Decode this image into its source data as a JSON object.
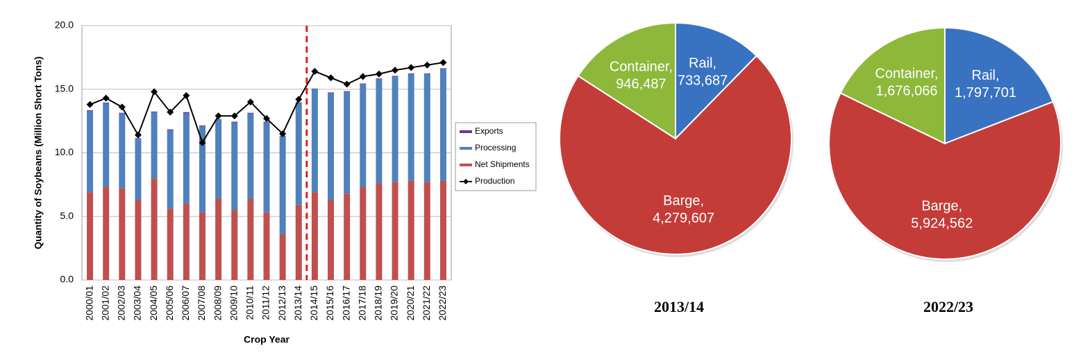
{
  "chart_data": [
    {
      "type": "bar",
      "x_label": "Crop Year",
      "y_label": "Quantity of  Soybeans  (Million Short Tons)",
      "categories": [
        "2000/01",
        "2001/02",
        "2002/03",
        "2003/04",
        "2004/05",
        "2005/06",
        "2006/07",
        "2007/08",
        "2008/09",
        "2009/10",
        "2010/11",
        "2011/12",
        "2012/13",
        "2013/14",
        "2014/15",
        "2015/16",
        "2016/17",
        "2017/18",
        "2018/19",
        "2019/20",
        "2020/21",
        "2021/22",
        "2022/23"
      ],
      "series": [
        {
          "name": "Exports",
          "color": "#7030a0",
          "values": [
            0.05,
            0.05,
            0.05,
            0.05,
            0.05,
            0.05,
            0.1,
            0.05,
            0.05,
            0.05,
            0.05,
            0.05,
            0.05,
            0.05,
            0.05,
            0.05,
            0.05,
            0.05,
            0.05,
            0.05,
            0.05,
            0.05,
            0.05
          ]
        },
        {
          "name": "Processing",
          "color": "#4f81bd",
          "values": [
            6.4,
            6.6,
            5.9,
            4.8,
            5.2,
            6.2,
            7.1,
            6.8,
            6.2,
            6.9,
            6.7,
            7.1,
            7.7,
            8.0,
            8.1,
            8.4,
            8.0,
            8.1,
            8.2,
            8.3,
            8.4,
            8.5,
            8.8
          ]
        },
        {
          "name": "Net Shipments",
          "color": "#c0504d",
          "values": [
            6.9,
            7.3,
            7.2,
            6.3,
            8.0,
            5.6,
            6.0,
            5.3,
            6.4,
            5.5,
            6.4,
            5.3,
            3.6,
            5.9,
            6.9,
            6.3,
            6.8,
            7.3,
            7.6,
            7.7,
            7.8,
            7.7,
            7.8
          ]
        },
        {
          "name": "Production",
          "type": "line",
          "color": "#000000",
          "values": [
            13.8,
            14.3,
            13.6,
            11.4,
            14.8,
            13.2,
            14.5,
            10.8,
            12.9,
            12.9,
            14.0,
            12.7,
            11.5,
            14.2,
            16.4,
            15.9,
            15.4,
            16.0,
            16.2,
            16.5,
            16.7,
            16.9,
            17.1
          ]
        }
      ],
      "ylim": [
        0,
        20
      ],
      "yticks": [
        {
          "value": 0,
          "label": "0.0"
        },
        {
          "value": 5,
          "label": "5.0"
        },
        {
          "value": 10,
          "label": "10.0"
        },
        {
          "value": 15,
          "label": "15.0"
        },
        {
          "value": 20,
          "label": "20.0"
        }
      ],
      "grid": true,
      "legend": "right"
    },
    {
      "type": "pie",
      "title": "2013/14",
      "categories": [
        "Rail,",
        "Barge,",
        "Container,"
      ],
      "values": [
        733687,
        4279607,
        946487
      ],
      "value_labels": [
        "733,687",
        "4,279,607",
        "946,487"
      ],
      "colors": [
        "#3a72c2",
        "#c43c38",
        "#8db83a"
      ]
    },
    {
      "type": "pie",
      "title": "2022/23",
      "categories": [
        "Rail,",
        "Barge,",
        "Container,"
      ],
      "values": [
        1797701,
        5924562,
        1676066
      ],
      "value_labels": [
        "1,797,701",
        "5,924,562",
        "1,676,066"
      ],
      "colors": [
        "#3a72c2",
        "#c43c38",
        "#8db83a"
      ]
    }
  ]
}
